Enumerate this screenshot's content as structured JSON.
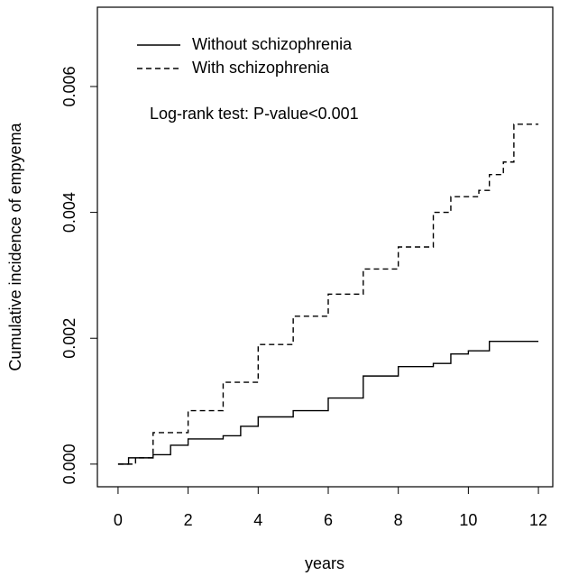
{
  "chart_data": {
    "type": "step",
    "xlabel": "years",
    "ylabel": "Cumulative incidence of empyema",
    "annotation": "Log-rank test: P-value<0.001",
    "xlim": [
      -0.59,
      12.41
    ],
    "ylim": [
      -0.00036,
      0.00726
    ],
    "xticks": [
      0,
      2,
      4,
      6,
      8,
      10,
      12
    ],
    "yticks": [
      {
        "value": 0,
        "label": "0.000"
      },
      {
        "value": 0.002,
        "label": "0.002"
      },
      {
        "value": 0.004,
        "label": "0.004"
      },
      {
        "value": 0.006,
        "label": "0.006"
      }
    ],
    "legend": "top-left",
    "series": [
      {
        "name": "Without schizophrenia",
        "color": "#000000",
        "dash": "solid",
        "x": [
          0,
          0.3,
          1,
          1.5,
          2,
          3,
          3.5,
          4,
          5,
          6,
          7,
          8,
          9,
          9.5,
          10,
          10.6,
          12
        ],
        "values": [
          0,
          0.0001,
          0.00015,
          0.0003,
          0.0004,
          0.00045,
          0.0006,
          0.00075,
          0.00085,
          0.00105,
          0.0014,
          0.00155,
          0.0016,
          0.00175,
          0.0018,
          0.00195,
          0.00195
        ]
      },
      {
        "name": "With schizophrenia",
        "color": "#000000",
        "dash": "dashed",
        "x": [
          0,
          0.5,
          1,
          2,
          3,
          4,
          5,
          6,
          7,
          8,
          9,
          9.5,
          10.3,
          10.6,
          11,
          11.3,
          12
        ],
        "values": [
          0,
          0.0001,
          0.0005,
          0.00085,
          0.0013,
          0.0019,
          0.00235,
          0.0027,
          0.0031,
          0.00345,
          0.004,
          0.00425,
          0.00435,
          0.0046,
          0.0048,
          0.0054,
          0.0054
        ]
      }
    ]
  }
}
